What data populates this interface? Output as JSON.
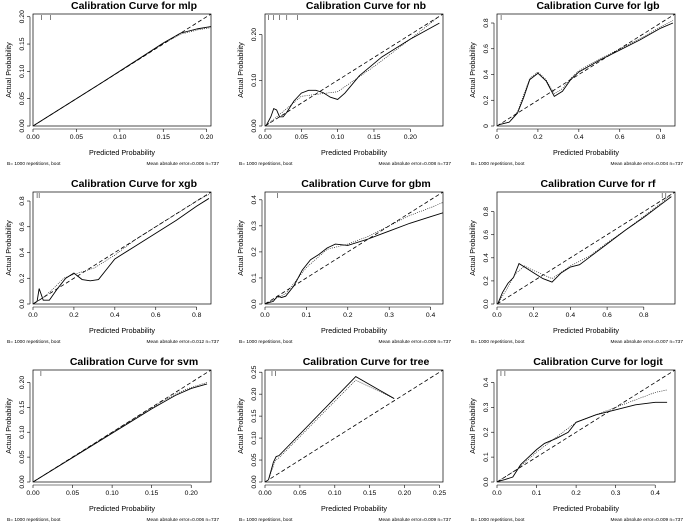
{
  "chart_data": [
    {
      "type": "line",
      "model": "mlp",
      "title": "Calibration Curve for mlp",
      "xlabel": "Predicted Probability",
      "ylabel": "Actual Probability",
      "xlim": [
        0,
        0.205
      ],
      "ylim": [
        0,
        0.205
      ],
      "xticks": [
        0.0,
        0.05,
        0.1,
        0.15,
        0.2
      ],
      "yticks": [
        0.0,
        0.05,
        0.1,
        0.15,
        0.2
      ],
      "xtick_labels": [
        "0.00",
        "0.05",
        "0.10",
        "0.15",
        "0.20"
      ],
      "ytick_labels": [
        "0.00",
        "0.05",
        "0.10",
        "0.15",
        "0.20"
      ],
      "bias_corrected": {
        "x": [
          0.002,
          0.04,
          0.08,
          0.12,
          0.15,
          0.17,
          0.19,
          0.205
        ],
        "y": [
          0.002,
          0.04,
          0.08,
          0.121,
          0.152,
          0.17,
          0.178,
          0.182
        ]
      },
      "apparent": {
        "x": [
          0.002,
          0.04,
          0.08,
          0.12,
          0.15,
          0.17,
          0.19,
          0.205
        ],
        "y": [
          0.002,
          0.04,
          0.08,
          0.12,
          0.151,
          0.168,
          0.176,
          0.18
        ]
      },
      "rug": [
        0.01,
        0.02
      ],
      "footer_left": "B= 1000 repetitions, boot",
      "footer_right": "Mean absolute error=0.006 n=737"
    },
    {
      "type": "line",
      "model": "nb",
      "title": "Calibration Curve for nb",
      "xlabel": "Predicted Probability",
      "ylabel": "Actual Probability",
      "xlim": [
        0,
        0.245
      ],
      "ylim": [
        0,
        0.245
      ],
      "xticks": [
        0.0,
        0.05,
        0.1,
        0.15,
        0.2
      ],
      "yticks": [
        0.0,
        0.1,
        0.2
      ],
      "xtick_labels": [
        "0.00",
        "0.05",
        "0.10",
        "0.15",
        "0.20"
      ],
      "ytick_labels": [
        "0.00",
        "0.10",
        "0.20"
      ],
      "bias_corrected": {
        "x": [
          0.002,
          0.008,
          0.012,
          0.016,
          0.02,
          0.025,
          0.03,
          0.04,
          0.05,
          0.06,
          0.07,
          0.08,
          0.09,
          0.1,
          0.11,
          0.13,
          0.16,
          0.2,
          0.24
        ],
        "y": [
          0.002,
          0.02,
          0.038,
          0.035,
          0.02,
          0.02,
          0.03,
          0.055,
          0.072,
          0.078,
          0.078,
          0.073,
          0.063,
          0.058,
          0.072,
          0.11,
          0.15,
          0.19,
          0.225
        ]
      },
      "apparent": {
        "x": [
          0.002,
          0.02,
          0.05,
          0.1,
          0.15,
          0.2,
          0.24
        ],
        "y": [
          0.002,
          0.025,
          0.065,
          0.075,
          0.13,
          0.19,
          0.24
        ]
      },
      "rug": [
        0.005,
        0.012,
        0.02,
        0.03,
        0.045
      ],
      "footer_left": "B= 1000 repetitions, boot",
      "footer_right": "Mean absolute error=0.008 n=737"
    },
    {
      "type": "line",
      "model": "lgb",
      "title": "Calibration Curve for lgb",
      "xlabel": "Predicted Probability",
      "ylabel": "Actual Probability",
      "xlim": [
        0,
        0.87
      ],
      "ylim": [
        0,
        0.87
      ],
      "xticks": [
        0,
        0.2,
        0.4,
        0.6,
        0.8
      ],
      "yticks": [
        0,
        0.2,
        0.4,
        0.6,
        0.8
      ],
      "xtick_labels": [
        "0",
        "0.2",
        "0.4",
        "0.6",
        "0.8"
      ],
      "ytick_labels": [
        "0",
        "0.2",
        "0.4",
        "0.6",
        "0.8"
      ],
      "bias_corrected": {
        "x": [
          0.01,
          0.06,
          0.1,
          0.13,
          0.16,
          0.2,
          0.24,
          0.28,
          0.32,
          0.36,
          0.4,
          0.5,
          0.6,
          0.7,
          0.8,
          0.86
        ],
        "y": [
          0.01,
          0.03,
          0.1,
          0.22,
          0.36,
          0.41,
          0.35,
          0.23,
          0.27,
          0.36,
          0.42,
          0.51,
          0.59,
          0.67,
          0.76,
          0.8
        ]
      },
      "apparent": {
        "x": [
          0.01,
          0.06,
          0.1,
          0.13,
          0.16,
          0.2,
          0.24,
          0.28,
          0.32,
          0.36,
          0.4,
          0.5,
          0.6,
          0.7,
          0.8,
          0.86
        ],
        "y": [
          0.01,
          0.03,
          0.11,
          0.24,
          0.37,
          0.42,
          0.36,
          0.25,
          0.29,
          0.37,
          0.43,
          0.52,
          0.6,
          0.68,
          0.77,
          0.82
        ]
      },
      "rug": [
        0.02
      ],
      "footer_left": "B= 1000 repetitions, boot",
      "footer_right": "Mean absolute error=0.004 n=737"
    },
    {
      "type": "line",
      "model": "xgb",
      "title": "Calibration Curve for xgb",
      "xlabel": "Predicted Probability",
      "ylabel": "Actual Probability",
      "xlim": [
        0,
        0.87
      ],
      "ylim": [
        0,
        0.87
      ],
      "xticks": [
        0,
        0.2,
        0.4,
        0.6,
        0.8
      ],
      "yticks": [
        0,
        0.2,
        0.4,
        0.6,
        0.8
      ],
      "xtick_labels": [
        "0.0",
        "0.2",
        "0.4",
        "0.6",
        "0.8"
      ],
      "ytick_labels": [
        "0.0",
        "0.2",
        "0.4",
        "0.6",
        "0.8"
      ],
      "bias_corrected": {
        "x": [
          0.005,
          0.02,
          0.03,
          0.05,
          0.08,
          0.12,
          0.16,
          0.2,
          0.24,
          0.28,
          0.32,
          0.36,
          0.4,
          0.5,
          0.6,
          0.7,
          0.8,
          0.86
        ],
        "y": [
          0.005,
          0.02,
          0.12,
          0.03,
          0.03,
          0.12,
          0.2,
          0.24,
          0.19,
          0.18,
          0.19,
          0.27,
          0.35,
          0.45,
          0.55,
          0.65,
          0.76,
          0.82
        ]
      },
      "apparent": {
        "x": [
          0.005,
          0.05,
          0.1,
          0.15,
          0.2,
          0.3,
          0.4,
          0.5,
          0.6,
          0.7,
          0.8,
          0.86
        ],
        "y": [
          0.005,
          0.05,
          0.12,
          0.2,
          0.23,
          0.28,
          0.38,
          0.5,
          0.6,
          0.7,
          0.8,
          0.85
        ]
      },
      "rug": [
        0.02,
        0.03
      ],
      "footer_left": "B= 1000 repetitions, boot",
      "footer_right": "Mean absolute error=0.012 n=737"
    },
    {
      "type": "line",
      "model": "gbm",
      "title": "Calibration Curve for gbm",
      "xlabel": "Predicted Probability",
      "ylabel": "Actual Probability",
      "xlim": [
        0,
        0.43
      ],
      "ylim": [
        0,
        0.43
      ],
      "xticks": [
        0.0,
        0.1,
        0.2,
        0.3,
        0.4
      ],
      "yticks": [
        0.0,
        0.1,
        0.2,
        0.3,
        0.4
      ],
      "xtick_labels": [
        "0.0",
        "0.1",
        "0.2",
        "0.3",
        "0.4"
      ],
      "ytick_labels": [
        "0.0",
        "0.1",
        "0.2",
        "0.3",
        "0.4"
      ],
      "bias_corrected": {
        "x": [
          0.002,
          0.02,
          0.03,
          0.04,
          0.05,
          0.07,
          0.09,
          0.11,
          0.13,
          0.15,
          0.17,
          0.2,
          0.25,
          0.3,
          0.35,
          0.4,
          0.43
        ],
        "y": [
          0.002,
          0.01,
          0.03,
          0.025,
          0.03,
          0.07,
          0.13,
          0.17,
          0.19,
          0.215,
          0.23,
          0.225,
          0.25,
          0.28,
          0.31,
          0.335,
          0.35
        ]
      },
      "apparent": {
        "x": [
          0.002,
          0.05,
          0.1,
          0.15,
          0.2,
          0.25,
          0.3,
          0.35,
          0.4,
          0.43
        ],
        "y": [
          0.002,
          0.04,
          0.14,
          0.21,
          0.23,
          0.26,
          0.3,
          0.34,
          0.37,
          0.39
        ]
      },
      "rug": [
        0.03
      ],
      "footer_left": "B= 1000 repetitions, boot",
      "footer_right": "Mean absolute error=0.009 n=737"
    },
    {
      "type": "line",
      "model": "rf",
      "title": "Calibration Curve for rf",
      "xlabel": "Predicted Probability",
      "ylabel": "Actual Probability",
      "xlim": [
        0,
        0.97
      ],
      "ylim": [
        0,
        0.97
      ],
      "xticks": [
        0,
        0.2,
        0.4,
        0.6,
        0.8
      ],
      "yticks": [
        0,
        0.2,
        0.4,
        0.6,
        0.8
      ],
      "xtick_labels": [
        "0.0",
        "0.2",
        "0.4",
        "0.6",
        "0.8"
      ],
      "ytick_labels": [
        "0.0",
        "0.2",
        "0.4",
        "0.6",
        "0.8"
      ],
      "bias_corrected": {
        "x": [
          0.005,
          0.03,
          0.06,
          0.09,
          0.12,
          0.15,
          0.2,
          0.25,
          0.3,
          0.35,
          0.4,
          0.45,
          0.5,
          0.6,
          0.7,
          0.8,
          0.9,
          0.95
        ],
        "y": [
          0.005,
          0.1,
          0.18,
          0.23,
          0.35,
          0.32,
          0.27,
          0.22,
          0.19,
          0.27,
          0.32,
          0.34,
          0.4,
          0.52,
          0.64,
          0.75,
          0.87,
          0.93
        ]
      },
      "apparent": {
        "x": [
          0.005,
          0.05,
          0.1,
          0.15,
          0.2,
          0.3,
          0.4,
          0.5,
          0.6,
          0.7,
          0.8,
          0.9,
          0.95
        ],
        "y": [
          0.005,
          0.12,
          0.26,
          0.33,
          0.29,
          0.22,
          0.33,
          0.41,
          0.53,
          0.64,
          0.76,
          0.88,
          0.95
        ]
      },
      "rug": [
        0.9,
        0.92
      ],
      "footer_left": "B= 1000 repetitions, boot",
      "footer_right": "Mean absolute error=0.007 n=737"
    },
    {
      "type": "line",
      "model": "svm",
      "title": "Calibration Curve for svm",
      "xlabel": "Predicted Probability",
      "ylabel": "Actual Probability",
      "xlim": [
        0,
        0.225
      ],
      "ylim": [
        0,
        0.225
      ],
      "xticks": [
        0.0,
        0.05,
        0.1,
        0.15,
        0.2
      ],
      "yticks": [
        0.0,
        0.05,
        0.1,
        0.15,
        0.2
      ],
      "xtick_labels": [
        "0.00",
        "0.05",
        "0.10",
        "0.15",
        "0.20"
      ],
      "ytick_labels": [
        "0.00",
        "0.05",
        "0.10",
        "0.15",
        "0.20"
      ],
      "bias_corrected": {
        "x": [
          0.002,
          0.05,
          0.1,
          0.15,
          0.18,
          0.2,
          0.22
        ],
        "y": [
          0.002,
          0.049,
          0.098,
          0.147,
          0.174,
          0.188,
          0.197
        ]
      },
      "apparent": {
        "x": [
          0.002,
          0.05,
          0.1,
          0.15,
          0.18,
          0.2,
          0.22
        ],
        "y": [
          0.002,
          0.05,
          0.1,
          0.149,
          0.177,
          0.19,
          0.2
        ]
      },
      "rug": [
        0.01
      ],
      "footer_left": "B= 1000 repetitions, boot",
      "footer_right": "Mean absolute error=0.006 n=737"
    },
    {
      "type": "line",
      "model": "tree",
      "title": "Calibration Curve for tree",
      "xlabel": "Predicted Probability",
      "ylabel": "Actual Probability",
      "xlim": [
        0,
        0.255
      ],
      "ylim": [
        0,
        0.255
      ],
      "xticks": [
        0.0,
        0.05,
        0.1,
        0.15,
        0.2,
        0.25
      ],
      "yticks": [
        0.0,
        0.05,
        0.1,
        0.15,
        0.2,
        0.25
      ],
      "xtick_labels": [
        "0.00",
        "0.05",
        "0.10",
        "0.15",
        "0.20",
        "0.25"
      ],
      "ytick_labels": [
        "0.00",
        "0.05",
        "0.10",
        "0.15",
        "0.20",
        "0.25"
      ],
      "bias_corrected": {
        "x": [
          0.005,
          0.012,
          0.016,
          0.02,
          0.13,
          0.185
        ],
        "y": [
          0.005,
          0.045,
          0.058,
          0.06,
          0.24,
          0.19
        ]
      },
      "apparent": {
        "x": [
          0.005,
          0.015,
          0.02,
          0.13,
          0.185
        ],
        "y": [
          0.005,
          0.05,
          0.055,
          0.232,
          0.19
        ]
      },
      "rug": [
        0.01,
        0.015
      ],
      "footer_left": "B= 1000 repetitions, boot",
      "footer_right": "Mean absolute error=0.009 n=737"
    },
    {
      "type": "line",
      "model": "logit",
      "title": "Calibration Curve for logit",
      "xlabel": "Predicted Probability",
      "ylabel": "Actual Probability",
      "xlim": [
        0,
        0.45
      ],
      "ylim": [
        0,
        0.45
      ],
      "xticks": [
        0.0,
        0.1,
        0.2,
        0.3,
        0.4
      ],
      "yticks": [
        0.0,
        0.1,
        0.2,
        0.3,
        0.4
      ],
      "xtick_labels": [
        "0.0",
        "0.1",
        "0.2",
        "0.3",
        "0.4"
      ],
      "ytick_labels": [
        "0.0",
        "0.1",
        "0.2",
        "0.3",
        "0.4"
      ],
      "bias_corrected": {
        "x": [
          0.002,
          0.02,
          0.04,
          0.06,
          0.08,
          0.1,
          0.12,
          0.15,
          0.18,
          0.2,
          0.25,
          0.3,
          0.35,
          0.4,
          0.43
        ],
        "y": [
          0.002,
          0.01,
          0.02,
          0.07,
          0.1,
          0.13,
          0.155,
          0.175,
          0.2,
          0.24,
          0.27,
          0.29,
          0.31,
          0.32,
          0.32
        ]
      },
      "apparent": {
        "x": [
          0.002,
          0.05,
          0.1,
          0.15,
          0.2,
          0.25,
          0.3,
          0.35,
          0.4,
          0.43
        ],
        "y": [
          0.002,
          0.05,
          0.12,
          0.18,
          0.24,
          0.27,
          0.3,
          0.33,
          0.36,
          0.37
        ]
      },
      "rug": [
        0.01,
        0.02
      ],
      "footer_left": "B= 1000 repetitions, boot",
      "footer_right": "Mean absolute error=0.009 n=737"
    }
  ]
}
